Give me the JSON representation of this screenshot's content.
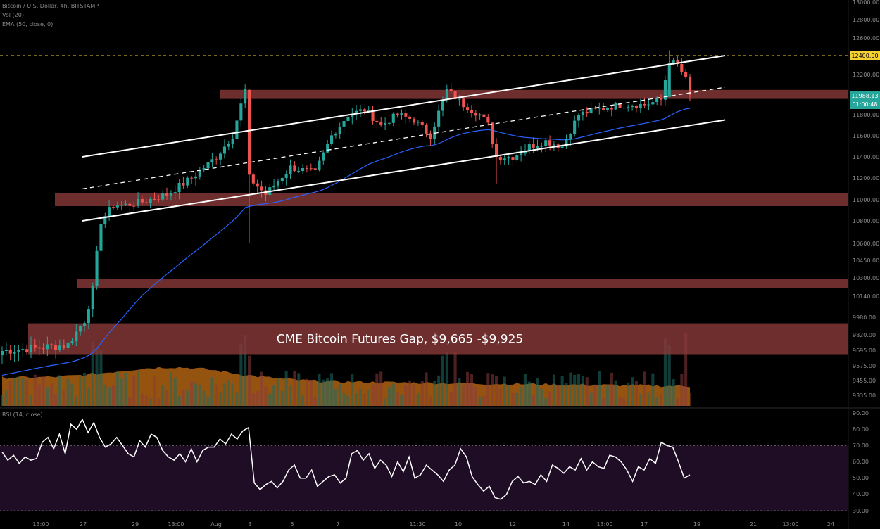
{
  "header": {
    "symbol": "Bitcoin / U.S. Dollar, 4h, BITSTAMP",
    "volume_indicator": "Vol (20)",
    "ema_indicator": "EMA (50, close, 0)"
  },
  "rsi_panel": {
    "label": "RSI (14, close)"
  },
  "annotation": {
    "gap_label": "CME Bitcoin Futures Gap, $9,665 -$9,925"
  },
  "price_badges": {
    "resistance": "12400.00",
    "last_price": "11988.13",
    "countdown": "01:00:48"
  },
  "colors": {
    "up_candle": "#26a69a",
    "down_candle": "#ef5350",
    "zone_fill": "#8b3a3a",
    "ema": "#2962ff",
    "volume_area": "#c76f16",
    "rsi_line": "#ffffff",
    "rsi_band": "#1e0d24",
    "resistance_line": "#f5d033",
    "background": "#000000"
  },
  "chart_data": [
    {
      "type": "candlestick",
      "title": "Bitcoin / U.S. Dollar, 4h, BITSTAMP",
      "x_tick_labels": [
        "13:00",
        "27",
        "29",
        "13:00",
        "Aug",
        "3",
        "5",
        "7",
        "11:30",
        "10",
        "12",
        "14",
        "13:00",
        "17",
        "19",
        "21",
        "13:00",
        "24"
      ],
      "y_tick_labels": [
        "13000.00",
        "12800.00",
        "12600.00",
        "12400.00",
        "12200.00",
        "12000.00",
        "11800.00",
        "11600.00",
        "11400.00",
        "11200.00",
        "11000.00",
        "10800.00",
        "10600.00",
        "10450.00",
        "10300.00",
        "10140.00",
        "9980.00",
        "9820.00",
        "9695.00",
        "9575.00",
        "9455.00",
        "9335.00"
      ],
      "ylim": [
        9280,
        13030
      ],
      "grid": false,
      "indicators": [
        "Vol (20)",
        "EMA (50, close, 0)"
      ],
      "key_levels": [
        {
          "level": 12400,
          "label": "12400.00"
        },
        {
          "level": 11988.13,
          "label": "11988.13"
        }
      ],
      "zones": [
        {
          "low": 11960,
          "high": 12050
        },
        {
          "low": 10940,
          "high": 11060
        },
        {
          "low": 10210,
          "high": 10290
        },
        {
          "low": 9665,
          "high": 9925,
          "label": "CME Bitcoin Futures Gap, $9,665 -$9,925"
        }
      ],
      "channel": {
        "upper_start": 11400,
        "upper_end": 12400,
        "lower_start": 10800,
        "lower_end": 11750
      }
    },
    {
      "type": "line",
      "title": "RSI (14, close)",
      "y_tick_labels": [
        "90.00",
        "80.00",
        "70.00",
        "60.00",
        "50.00",
        "40.00",
        "30.00"
      ],
      "ylim": [
        25,
        93
      ],
      "band": [
        30,
        70
      ],
      "values": [
        66,
        61,
        64,
        59,
        63,
        61,
        62,
        72,
        75,
        68,
        77,
        65,
        83,
        80,
        86,
        78,
        84,
        75,
        69,
        71,
        75,
        70,
        65,
        63,
        73,
        69,
        77,
        75,
        67,
        63,
        61,
        65,
        60,
        68,
        60,
        67,
        69,
        69,
        74,
        71,
        77,
        74,
        79,
        81,
        47,
        43,
        46,
        48,
        44,
        48,
        55,
        58,
        50,
        50,
        55,
        45,
        48,
        51,
        52,
        47,
        50,
        65,
        67,
        61,
        65,
        56,
        61,
        58,
        51,
        60,
        54,
        63,
        50,
        52,
        58,
        55,
        52,
        48,
        55,
        58,
        68,
        63,
        51,
        46,
        42,
        45,
        38,
        37,
        40,
        48,
        51,
        47,
        48,
        46,
        52,
        48,
        58,
        56,
        53,
        57,
        55,
        62,
        55,
        60,
        57,
        56,
        64,
        63,
        60,
        55,
        48,
        57,
        55,
        62,
        59,
        72,
        70,
        69,
        60,
        50,
        52
      ]
    }
  ]
}
